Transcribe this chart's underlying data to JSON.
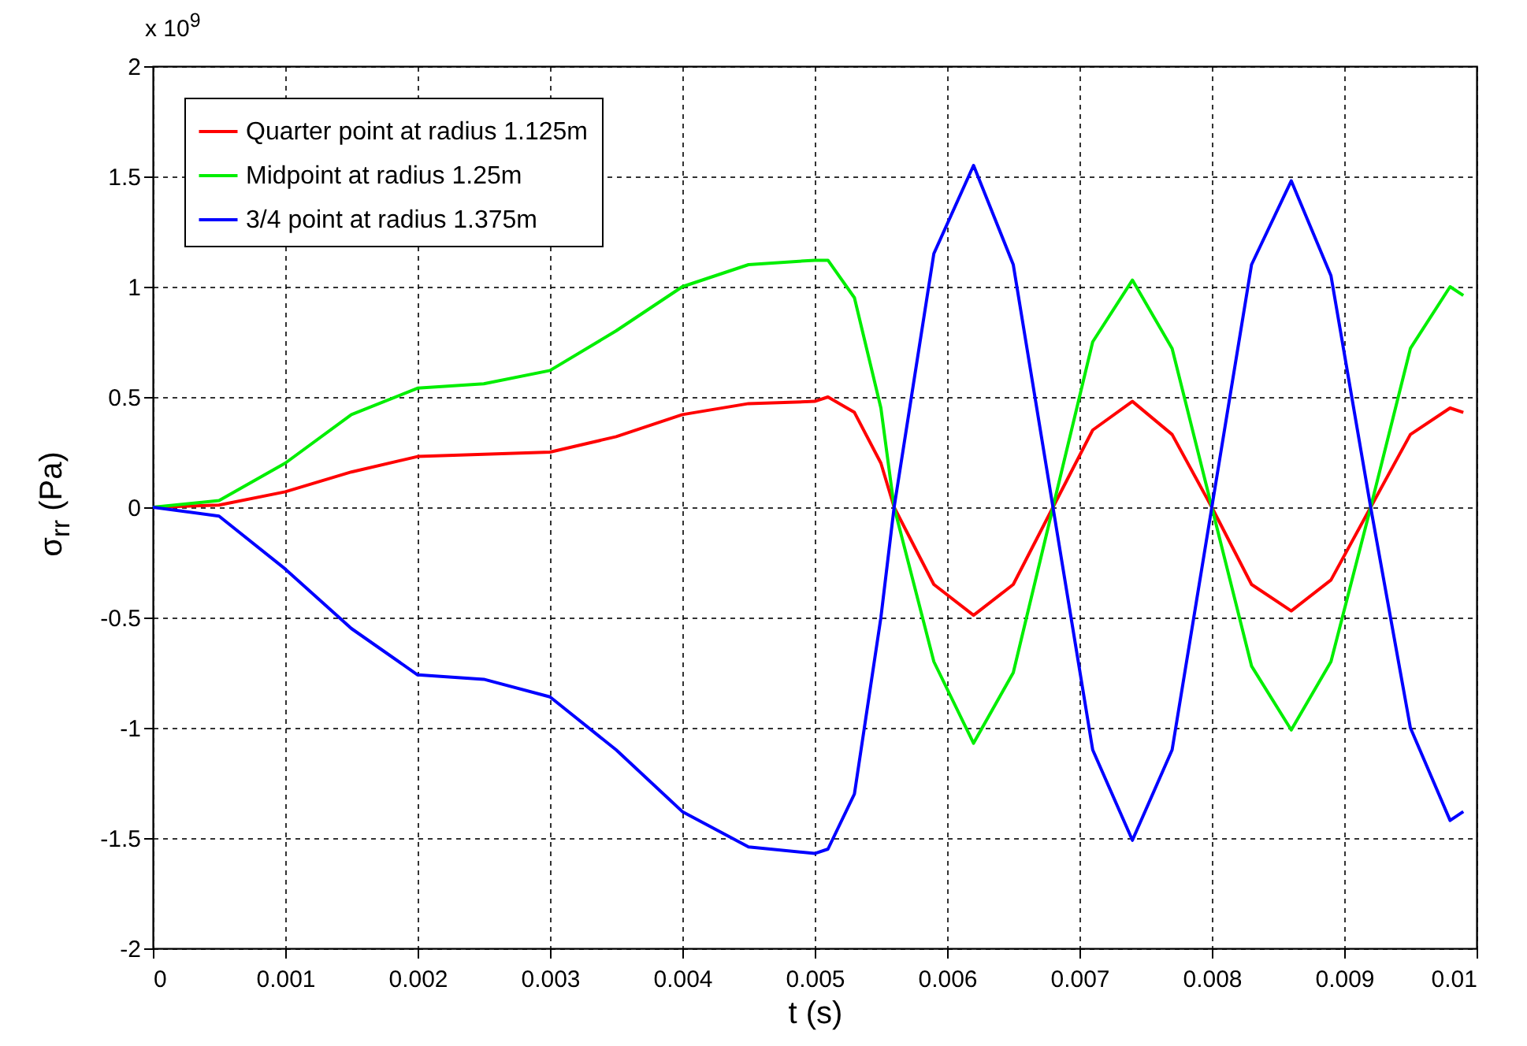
{
  "chart_data": {
    "type": "line",
    "xlabel": "t (s)",
    "ylabel": "σ$_{rr}$  (Pa)",
    "annotations": [
      "x 10$^{9}$"
    ],
    "x": [
      0,
      0.0005,
      0.001,
      0.0015,
      0.002,
      0.0025,
      0.003,
      0.0035,
      0.004,
      0.0045,
      0.005,
      0.0051,
      0.0053,
      0.0055,
      0.0056,
      0.0059,
      0.0062,
      0.0065,
      0.0068,
      0.0071,
      0.0074,
      0.0077,
      0.008,
      0.0083,
      0.0086,
      0.0089,
      0.0092,
      0.0095,
      0.0098,
      0.0099
    ],
    "series": [
      {
        "name": "Quarter point at radius 1.125m",
        "color": "#ff0000",
        "values": [
          0,
          0.01,
          0.07,
          0.16,
          0.23,
          0.24,
          0.25,
          0.32,
          0.42,
          0.47,
          0.48,
          0.5,
          0.43,
          0.2,
          0,
          -0.35,
          -0.49,
          -0.35,
          0,
          0.35,
          0.48,
          0.33,
          0,
          -0.35,
          -0.47,
          -0.33,
          0,
          0.33,
          0.45,
          0.43
        ]
      },
      {
        "name": "Midpoint at radius 1.25m",
        "color": "#00ee00",
        "values": [
          0,
          0.03,
          0.2,
          0.42,
          0.54,
          0.56,
          0.62,
          0.8,
          1.0,
          1.1,
          1.12,
          1.12,
          0.95,
          0.45,
          0,
          -0.7,
          -1.07,
          -0.75,
          0,
          0.75,
          1.03,
          0.72,
          0,
          -0.72,
          -1.01,
          -0.7,
          0,
          0.72,
          1.0,
          0.96
        ]
      },
      {
        "name": "3/4 point at radius 1.375m",
        "color": "#0000ff",
        "values": [
          0,
          -0.04,
          -0.28,
          -0.55,
          -0.76,
          -0.78,
          -0.86,
          -1.1,
          -1.38,
          -1.54,
          -1.57,
          -1.55,
          -1.3,
          -0.5,
          0,
          1.15,
          1.55,
          1.1,
          0,
          -1.1,
          -1.51,
          -1.1,
          0,
          1.1,
          1.48,
          1.05,
          0,
          -1.0,
          -1.42,
          -1.38
        ]
      }
    ],
    "xlim": [
      0,
      0.01
    ],
    "xticks": [
      0,
      0.001,
      0.002,
      0.003,
      0.004,
      0.005,
      0.006,
      0.007,
      0.008,
      0.009,
      0.01
    ],
    "ylim": [
      -2,
      2
    ],
    "yticks": [
      -2,
      -1.5,
      -1,
      -0.5,
      0,
      0.5,
      1,
      1.5,
      2
    ],
    "grid": true,
    "legend": "top left"
  }
}
